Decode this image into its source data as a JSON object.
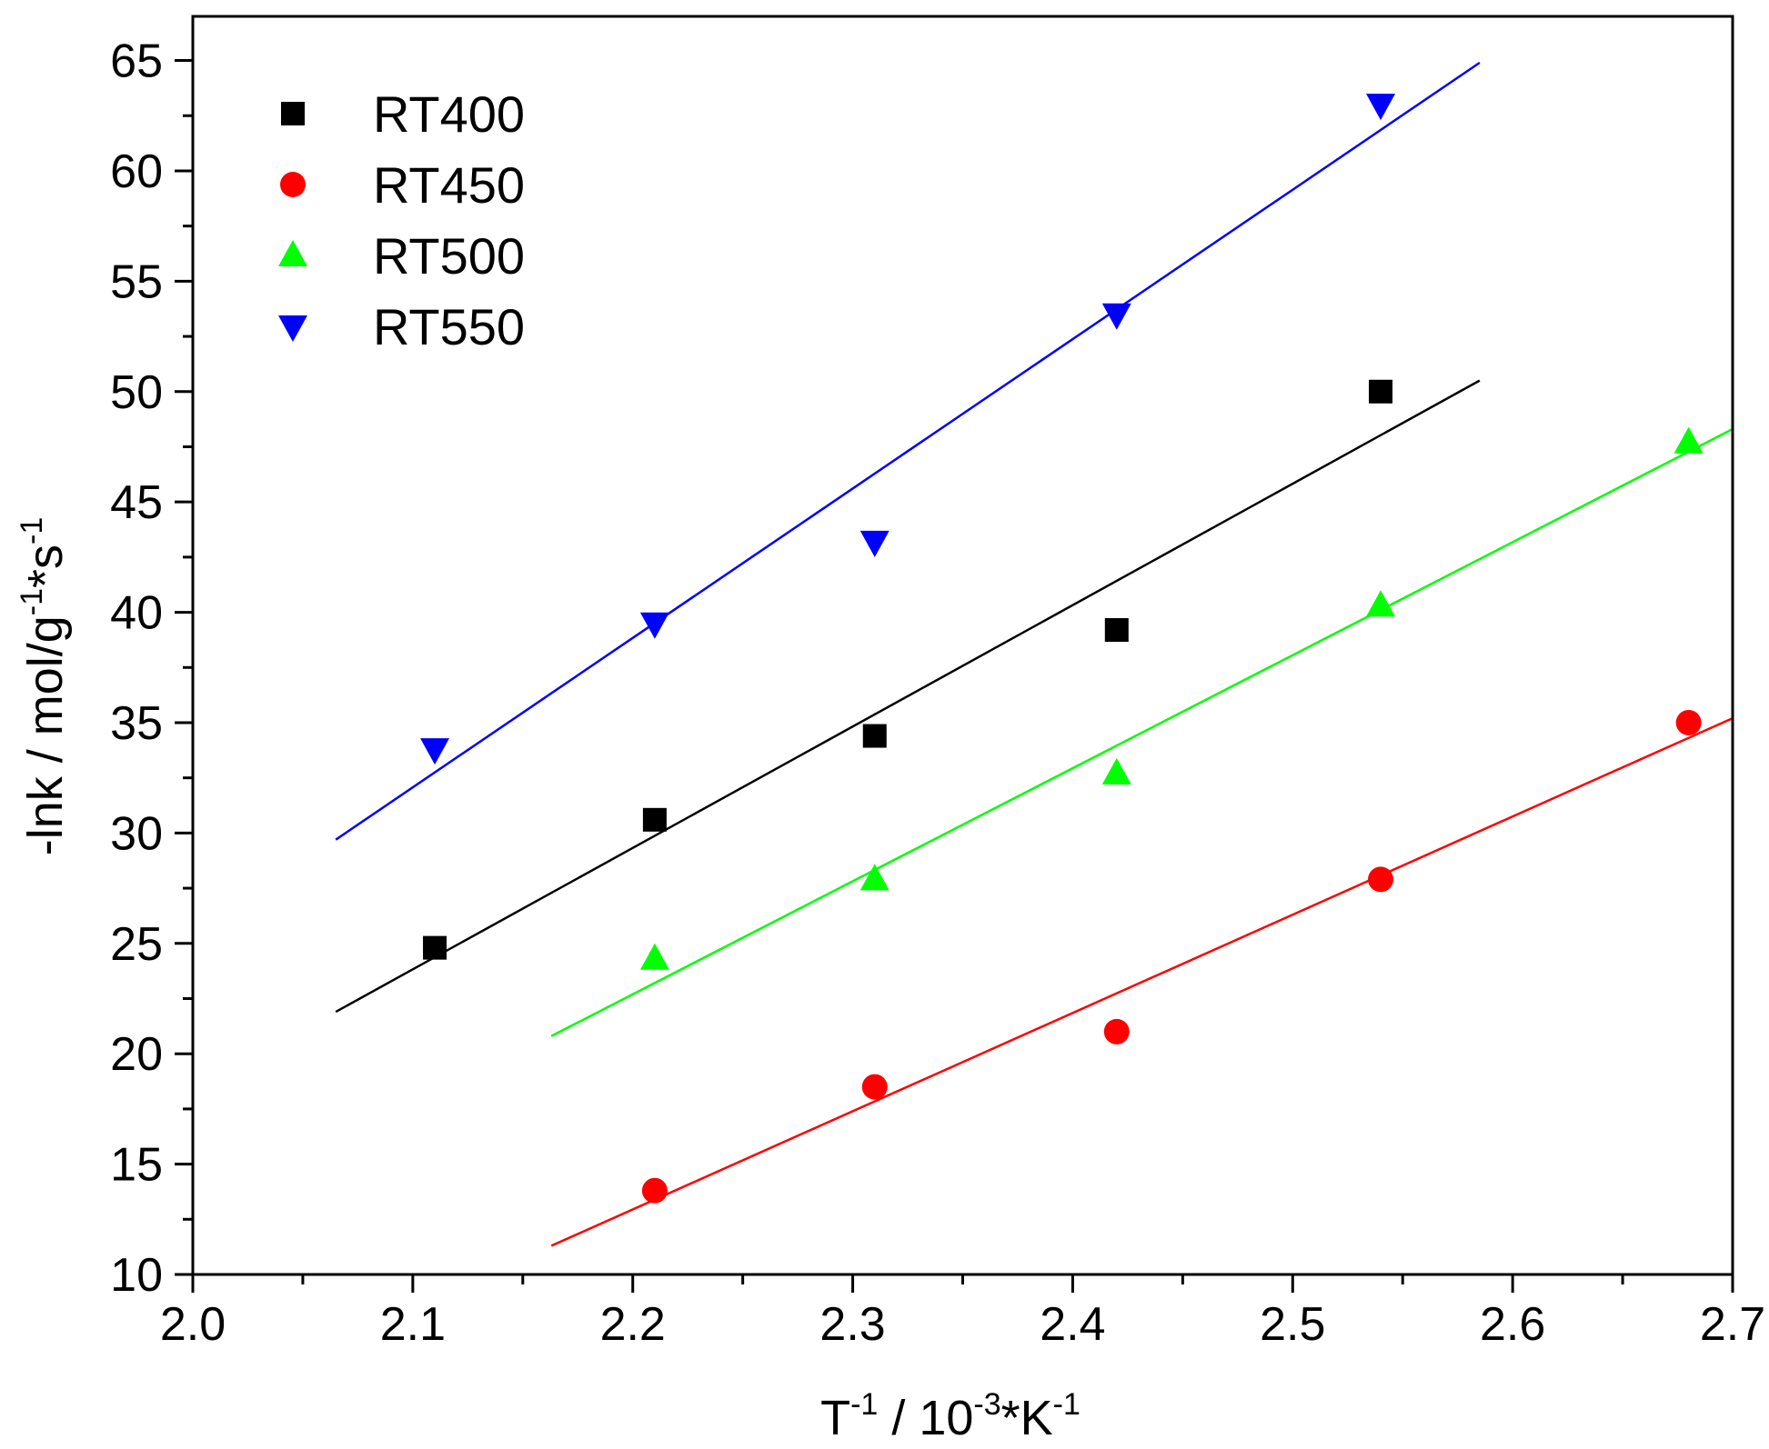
{
  "chart_data": {
    "type": "scatter",
    "title": "",
    "xlabel": "T-1 / 10-3*K-1",
    "xlabel_parts": {
      "main1": "T",
      "sup1": "-1",
      "main2": " / 10",
      "sup2": "-3",
      "main3": "*K",
      "sup3": "-1"
    },
    "ylabel": "-lnk / mol/g-1*s-1",
    "ylabel_parts": {
      "main1": "-lnk / mol/g",
      "sup1": "-1",
      "main2": "*s",
      "sup2": "-1"
    },
    "xlim": [
      2.0,
      2.7
    ],
    "ylim": [
      10,
      67
    ],
    "x_ticks": [
      2.0,
      2.1,
      2.2,
      2.3,
      2.4,
      2.5,
      2.6,
      2.7
    ],
    "x_tick_labels": [
      "2.0",
      "2.1",
      "2.2",
      "2.3",
      "2.4",
      "2.5",
      "2.6",
      "2.7"
    ],
    "x_minor_step": 0.05,
    "y_ticks": [
      10,
      15,
      20,
      25,
      30,
      35,
      40,
      45,
      50,
      55,
      60,
      65
    ],
    "y_tick_labels": [
      "10",
      "15",
      "20",
      "25",
      "30",
      "35",
      "40",
      "45",
      "50",
      "55",
      "60",
      "65"
    ],
    "y_minor_step": 2.5,
    "grid": false,
    "legend_position": "top-left",
    "series": [
      {
        "name": "RT400",
        "color": "#000000",
        "marker": "square",
        "x": [
          2.11,
          2.21,
          2.31,
          2.42,
          2.54
        ],
        "y": [
          24.8,
          30.6,
          34.4,
          39.2,
          50.0
        ],
        "fit": {
          "x": [
            2.065,
            2.585
          ],
          "y": [
            21.9,
            50.5
          ]
        }
      },
      {
        "name": "RT450",
        "color": "#ff0000",
        "marker": "circle",
        "x": [
          2.21,
          2.31,
          2.42,
          2.54,
          2.68
        ],
        "y": [
          13.8,
          18.5,
          21.0,
          27.9,
          35.0
        ],
        "fit": {
          "x": [
            2.163,
            2.7
          ],
          "y": [
            11.3,
            35.2
          ]
        }
      },
      {
        "name": "RT500",
        "color": "#00ff00",
        "marker": "triangle-up",
        "x": [
          2.21,
          2.31,
          2.42,
          2.54,
          2.68
        ],
        "y": [
          24.3,
          27.9,
          32.7,
          40.3,
          47.7
        ],
        "fit": {
          "x": [
            2.163,
            2.7
          ],
          "y": [
            20.8,
            48.3
          ]
        }
      },
      {
        "name": "RT550",
        "color": "#0000ff",
        "marker": "triangle-down",
        "x": [
          2.11,
          2.21,
          2.31,
          2.42,
          2.54
        ],
        "y": [
          33.8,
          39.5,
          43.2,
          53.5,
          63.0
        ],
        "fit": {
          "x": [
            2.065,
            2.585
          ],
          "y": [
            29.7,
            64.9
          ]
        }
      }
    ]
  }
}
